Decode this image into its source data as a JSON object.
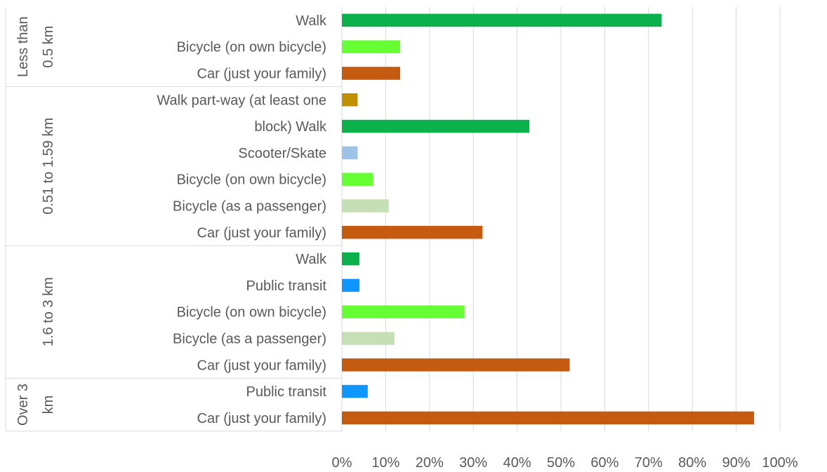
{
  "chart_data": {
    "type": "bar",
    "orientation": "horizontal",
    "title": "",
    "xlabel": "",
    "ylabel": "",
    "xlim": [
      0,
      100
    ],
    "x_ticks": [
      "0%",
      "10%",
      "20%",
      "30%",
      "40%",
      "50%",
      "60%",
      "70%",
      "80%",
      "90%",
      "100%"
    ],
    "grid": "vertical",
    "legend": "none",
    "groups": [
      {
        "label_lines": [
          "Less than",
          "0.5 km"
        ],
        "bars": [
          {
            "label": "Walk",
            "value": 73,
            "color": "#0cb14b"
          },
          {
            "label": "Bicycle (on own bicycle)",
            "value": 13.3,
            "color": "#66ff33"
          },
          {
            "label": "Car (just your family)",
            "value": 13.3,
            "color": "#c55a11"
          }
        ]
      },
      {
        "label_lines": [
          "0.51 to 1.59 km"
        ],
        "bars": [
          {
            "label": "Walk part-way (at least  one",
            "value": 3.6,
            "color": "#bf9000"
          },
          {
            "label": "block) Walk",
            "value": 42.8,
            "color": "#0cb14b"
          },
          {
            "label": "Scooter/Skate",
            "value": 3.6,
            "color": "#9dc3e6"
          },
          {
            "label": "Bicycle (on own bicycle)",
            "value": 7.1,
            "color": "#66ff33"
          },
          {
            "label": "Bicycle (as a passenger)",
            "value": 10.7,
            "color": "#c5e0b4"
          },
          {
            "label": "Car (just your family)",
            "value": 32.1,
            "color": "#c55a11"
          }
        ]
      },
      {
        "label_lines": [
          "1.6 to 3 km"
        ],
        "bars": [
          {
            "label": "Walk",
            "value": 4,
            "color": "#0cb14b"
          },
          {
            "label": "Public transit",
            "value": 4,
            "color": "#0f96ff"
          },
          {
            "label": "Bicycle (on own bicycle)",
            "value": 28,
            "color": "#66ff33"
          },
          {
            "label": "Bicycle (as a passenger)",
            "value": 12,
            "color": "#c5e0b4"
          },
          {
            "label": "Car (just your family)",
            "value": 52,
            "color": "#c55a11"
          }
        ]
      },
      {
        "label_lines": [
          "Over 3",
          "km"
        ],
        "bars": [
          {
            "label": "Public transit",
            "value": 5.9,
            "color": "#0f96ff"
          },
          {
            "label": "Car (just your family)",
            "value": 94.1,
            "color": "#c55a11"
          }
        ]
      }
    ]
  }
}
